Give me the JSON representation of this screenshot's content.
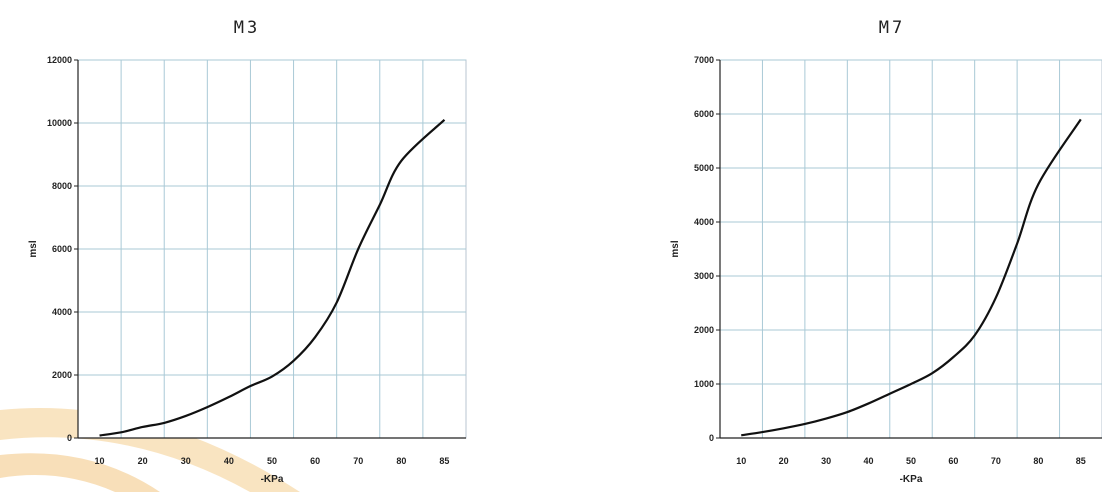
{
  "chart_data": [
    {
      "type": "line",
      "title": "M3",
      "xlabel": "-KPa",
      "ylabel": "msl",
      "x_ticks": [
        "10",
        "20",
        "30",
        "40",
        "50",
        "60",
        "70",
        "80",
        "85"
      ],
      "y_ticks": [
        "0",
        "2000",
        "4000",
        "6000",
        "8000",
        "10000",
        "12000"
      ],
      "ylim": [
        0,
        12000
      ],
      "grid": true,
      "series": [
        {
          "x": [
            10,
            15,
            20,
            25,
            30,
            35,
            40,
            45,
            50,
            55,
            60,
            65,
            70,
            75,
            80,
            85
          ],
          "y": [
            80,
            180,
            350,
            480,
            700,
            980,
            1300,
            1650,
            1950,
            2450,
            3200,
            4300,
            6000,
            7400,
            8800,
            10100
          ]
        }
      ],
      "color": "#111111"
    },
    {
      "type": "line",
      "title": "M7",
      "xlabel": "-KPa",
      "ylabel": "msl",
      "x_ticks": [
        "10",
        "20",
        "30",
        "40",
        "50",
        "60",
        "70",
        "80",
        "85"
      ],
      "y_ticks": [
        "0",
        "1000",
        "2000",
        "3000",
        "4000",
        "5000",
        "6000",
        "7000"
      ],
      "ylim": [
        0,
        7000
      ],
      "grid": true,
      "series": [
        {
          "x": [
            10,
            15,
            20,
            25,
            30,
            35,
            40,
            45,
            50,
            55,
            60,
            65,
            70,
            75,
            80,
            85
          ],
          "y": [
            50,
            110,
            180,
            260,
            360,
            480,
            640,
            820,
            1000,
            1200,
            1500,
            1900,
            2600,
            3600,
            4700,
            5900
          ]
        }
      ],
      "color": "#111111"
    }
  ]
}
